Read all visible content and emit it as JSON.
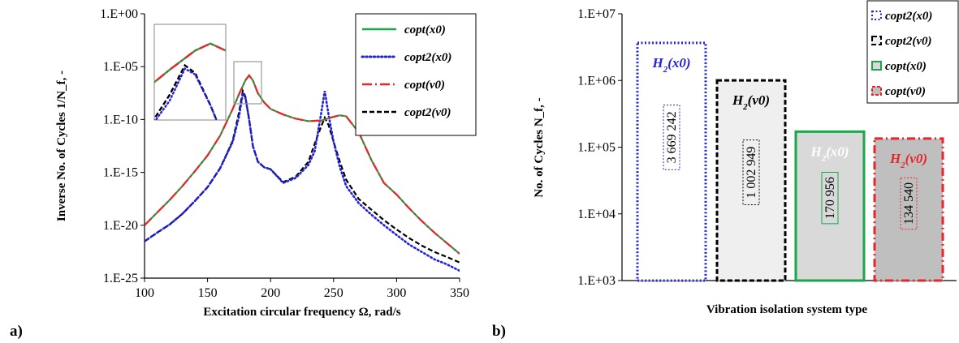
{
  "chart_data": [
    {
      "type": "line",
      "panel_label": "a)",
      "xlabel": "Excitation circular frequency Ω, rad/s",
      "ylabel": "Inverse No. of Cycles 1/N_f, -",
      "xlim": [
        100,
        350
      ],
      "ylim": [
        1e-25,
        1
      ],
      "yscale": "log",
      "x_ticks": [
        "100",
        "150",
        "200",
        "250",
        "300",
        "350"
      ],
      "y_ticks": [
        "1.E-25",
        "1.E-20",
        "1.E-15",
        "1.E-10",
        "1.E-05",
        "1.E+00"
      ],
      "legend_position": "top-right",
      "series": [
        {
          "name": "copt(x0)",
          "color": "#1aa64a",
          "dash": "solid",
          "x": [
            100,
            110,
            120,
            130,
            140,
            150,
            160,
            170,
            175,
            180,
            183,
            186,
            190,
            195,
            200,
            210,
            220,
            230,
            240,
            250,
            255,
            260,
            270,
            280,
            290,
            300,
            310,
            320,
            330,
            340,
            350
          ],
          "y": [
            1e-20,
            1.6e-19,
            2.5e-18,
            5e-17,
            1.3e-15,
            4e-14,
            3e-12,
            1e-09,
            2.5e-08,
            5e-07,
            1.5e-06,
            5e-07,
            3e-08,
            4e-09,
            1e-09,
            3e-10,
            1.2e-10,
            7e-11,
            8e-11,
            1.8e-10,
            2.5e-10,
            2e-10,
            6e-12,
            1.5e-14,
            1e-16,
            8e-18,
            4e-19,
            2.5e-20,
            2e-21,
            2e-22,
            2e-23
          ]
        },
        {
          "name": "copt2(x0)",
          "color": "#2222dd",
          "dash": "dotted",
          "x": [
            100,
            110,
            120,
            130,
            140,
            150,
            160,
            170,
            175,
            178,
            180,
            183,
            186,
            190,
            195,
            200,
            210,
            220,
            230,
            235,
            240,
            243,
            246,
            250,
            255,
            260,
            270,
            280,
            290,
            300,
            310,
            320,
            330,
            340,
            350
          ],
          "y": [
            3e-22,
            2e-21,
            1.2e-20,
            1.2e-19,
            2e-18,
            4e-17,
            2.5e-15,
            8e-13,
            2e-10,
            3e-08,
            1.2e-08,
            1e-10,
            3e-13,
            1e-14,
            3e-15,
            2e-15,
            1e-16,
            3e-16,
            5e-15,
            1e-13,
            3e-10,
            5e-08,
            3e-10,
            8e-13,
            3e-15,
            5e-17,
            1.2e-18,
            1e-19,
            1e-20,
            1.2e-21,
            1.5e-22,
            3e-23,
            6e-24,
            2e-24,
            5e-25
          ]
        },
        {
          "name": "copt(v0)",
          "color": "#e8262a",
          "dash": "dashdot",
          "x": [
            100,
            110,
            120,
            130,
            140,
            150,
            160,
            170,
            175,
            180,
            183,
            186,
            190,
            195,
            200,
            210,
            220,
            230,
            240,
            250,
            255,
            260,
            270,
            280,
            290,
            300,
            310,
            320,
            330,
            340,
            350
          ],
          "y": [
            1e-20,
            1.6e-19,
            2.5e-18,
            5e-17,
            1.3e-15,
            4e-14,
            3e-12,
            1e-09,
            2.5e-08,
            5e-07,
            1.5e-06,
            5e-07,
            3e-08,
            4e-09,
            1e-09,
            3e-10,
            1.2e-10,
            7e-11,
            8e-11,
            1.8e-10,
            2.5e-10,
            2e-10,
            6e-12,
            1.5e-14,
            1e-16,
            8e-18,
            4e-19,
            2.5e-20,
            2e-21,
            2e-22,
            2e-23
          ]
        },
        {
          "name": "copt2(v0)",
          "color": "#000000",
          "dash": "dashed",
          "x": [
            100,
            110,
            120,
            130,
            140,
            150,
            160,
            170,
            175,
            178,
            180,
            183,
            186,
            190,
            195,
            200,
            210,
            220,
            230,
            235,
            240,
            243,
            246,
            250,
            255,
            260,
            270,
            280,
            290,
            300,
            310,
            320,
            330,
            340,
            350
          ],
          "y": [
            3e-22,
            2e-21,
            1.2e-20,
            1.2e-19,
            2e-18,
            4e-17,
            2.5e-15,
            1e-12,
            5e-10,
            5e-08,
            1.5e-08,
            1e-10,
            3e-13,
            1e-14,
            3e-15,
            2e-15,
            1.2e-16,
            4e-16,
            1e-14,
            5e-13,
            2e-11,
            1.5e-10,
            3e-11,
            8e-13,
            1e-14,
            2e-16,
            3e-18,
            3e-19,
            3e-20,
            4e-21,
            6e-22,
            1.2e-22,
            3e-23,
            1e-23,
            3e-24
          ]
        }
      ]
    },
    {
      "type": "bar",
      "panel_label": "b)",
      "xlabel": "Vibration isolation system type",
      "ylabel": "No. of Cycles N_f, -",
      "ylim": [
        1000,
        10000000
      ],
      "yscale": "log",
      "y_ticks": [
        "1.E+03",
        "1.E+04",
        "1.E+05",
        "1.E+06",
        "1.E+07"
      ],
      "legend_position": "top-right",
      "categories": [
        "H2(x0)",
        "H2(v0)",
        "H2(x0)",
        "H2(v0)"
      ],
      "values": [
        3669242,
        1002949,
        170956,
        134540
      ],
      "value_labels": [
        "3 669 242",
        "1 002 949",
        "170 956",
        "134 540"
      ],
      "series_names": [
        "copt2(x0)",
        "copt2(v0)",
        "copt(x0)",
        "copt(v0)"
      ],
      "colors": [
        "#2222dd",
        "#000000",
        "#1aa64a",
        "#e8262a"
      ],
      "fills": [
        "#ffffff",
        "#efefef",
        "#d9d9d9",
        "#bfbfbf"
      ],
      "h2_colors": [
        "#2222dd",
        "#000000",
        "#ffffff",
        "#e8262a"
      ]
    }
  ]
}
